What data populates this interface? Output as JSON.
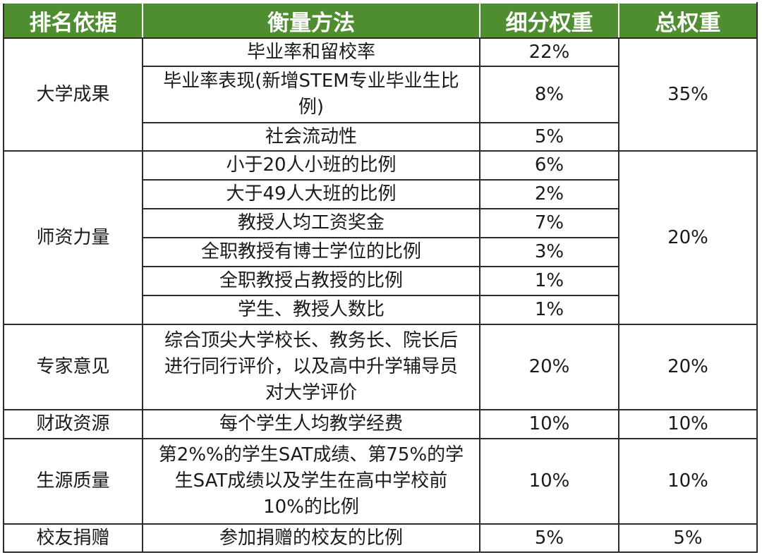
{
  "table": {
    "headers": [
      "排名依据",
      "衡量方法",
      "细分权重",
      "总权重"
    ],
    "groups": [
      {
        "category": "大学成果",
        "total": "35%",
        "rows": [
          {
            "method": "毕业率和留校率",
            "weight": "22%"
          },
          {
            "method": "毕业率表现(新增STEM专业毕业生比例)",
            "weight": "8%"
          },
          {
            "method": "社会流动性",
            "weight": "5%"
          }
        ]
      },
      {
        "category": "师资力量",
        "total": "20%",
        "rows": [
          {
            "method": "小于20人小班的比例",
            "weight": "6%"
          },
          {
            "method": "大于49人大班的比例",
            "weight": "2%"
          },
          {
            "method": "教授人均工资奖金",
            "weight": "7%"
          },
          {
            "method": "全职教授有博士学位的比例",
            "weight": "3%"
          },
          {
            "method": "全职教授占教授的比例",
            "weight": "1%"
          },
          {
            "method": "学生、教授人数比",
            "weight": "1%"
          }
        ]
      },
      {
        "category": "专家意见",
        "total": "20%",
        "rows": [
          {
            "method": "综合顶尖大学校长、教务长、院长后进行同行评价，以及高中升学辅导员对大学评价",
            "weight": "20%"
          }
        ]
      },
      {
        "category": "财政资源",
        "total": "10%",
        "rows": [
          {
            "method": "每个学生人均教学经费",
            "weight": "10%"
          }
        ]
      },
      {
        "category": "生源质量",
        "total": "10%",
        "rows": [
          {
            "method": "第2%%的学生SAT成绩、第75%的学生SAT成绩以及学生在高中学校前10%的比例",
            "weight": "10%"
          }
        ]
      },
      {
        "category": "校友捐赠",
        "total": "5%",
        "rows": [
          {
            "method": "参加捐赠的校友的比例",
            "weight": "5%"
          }
        ]
      }
    ]
  }
}
